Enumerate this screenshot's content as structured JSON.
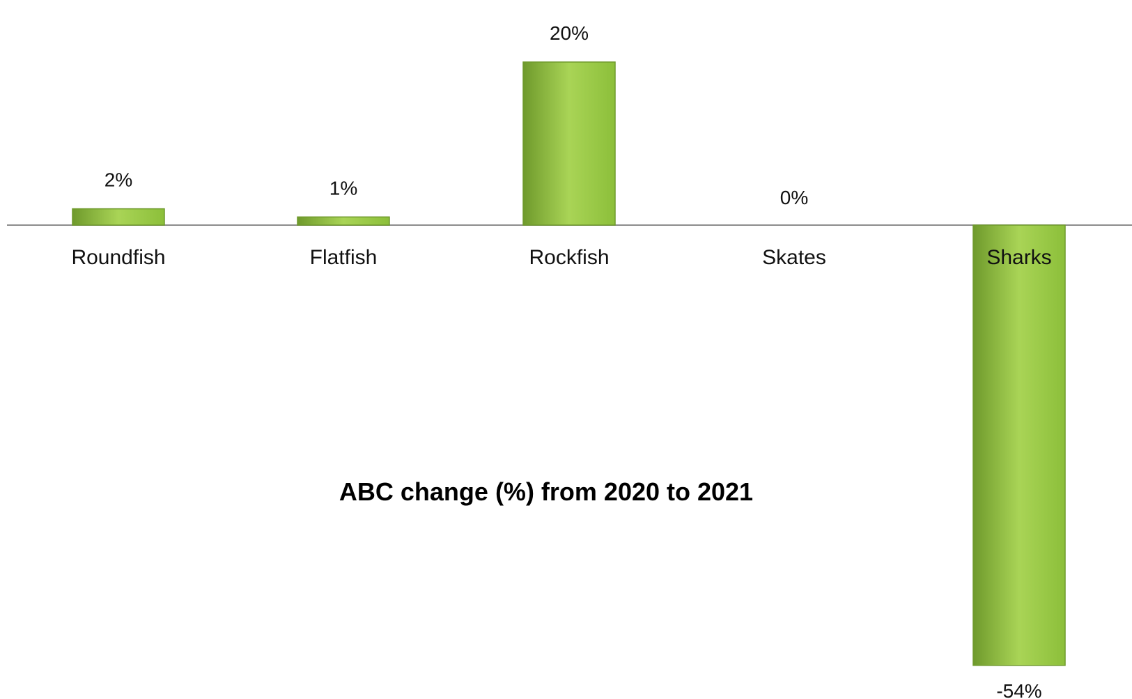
{
  "chart_data": {
    "type": "bar",
    "title": "ABC change (%) from 2020 to 2021",
    "xlabel": "",
    "ylabel": "",
    "categories": [
      "Roundfish",
      "Flatfish",
      "Rockfish",
      "Skates",
      "Sharks"
    ],
    "values": [
      2,
      1,
      20,
      0,
      -54
    ],
    "value_labels": [
      "2%",
      "1%",
      "20%",
      "0%",
      "-54%"
    ],
    "ylim": [
      -54,
      20
    ],
    "grid": false,
    "legend": "none",
    "bar_color": "#8cbf3a",
    "bar_color_light": "#a9d456",
    "bar_color_dark": "#6f9a2c"
  }
}
